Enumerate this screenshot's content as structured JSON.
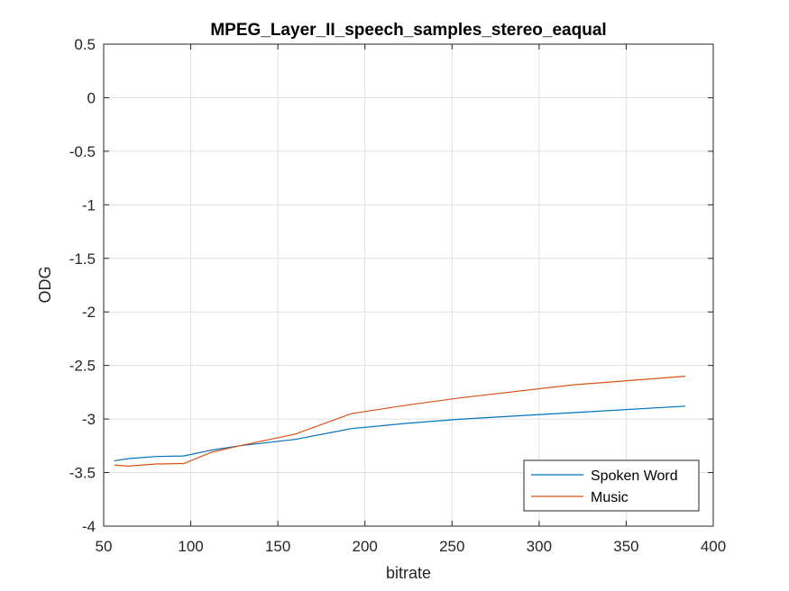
{
  "chart_data": {
    "type": "line",
    "title": "MPEG_Layer_II_speech_samples_stereo_eaqual",
    "xlabel": "bitrate",
    "ylabel": "ODG",
    "xlim": [
      50,
      400
    ],
    "ylim": [
      -4,
      0.5
    ],
    "xticks": [
      50,
      100,
      150,
      200,
      250,
      300,
      350,
      400
    ],
    "yticks": [
      0.5,
      0,
      -0.5,
      -1,
      -1.5,
      -2,
      -2.5,
      -3,
      -3.5,
      -4
    ],
    "grid": true,
    "legend_position": "bottom-right",
    "series": [
      {
        "name": "Spoken Word",
        "color": "#0072BD",
        "x": [
          56,
          64,
          80,
          96,
          112,
          128,
          160,
          192,
          224,
          256,
          320,
          384
        ],
        "y": [
          -3.39,
          -3.37,
          -3.35,
          -3.345,
          -3.29,
          -3.25,
          -3.19,
          -3.09,
          -3.04,
          -3.0,
          -2.94,
          -2.88
        ]
      },
      {
        "name": "Music",
        "color": "#D95319",
        "x": [
          56,
          64,
          80,
          96,
          112,
          128,
          160,
          192,
          224,
          256,
          320,
          384
        ],
        "y": [
          -3.43,
          -3.44,
          -3.42,
          -3.415,
          -3.31,
          -3.25,
          -3.14,
          -2.95,
          -2.87,
          -2.8,
          -2.68,
          -2.6
        ]
      }
    ]
  }
}
